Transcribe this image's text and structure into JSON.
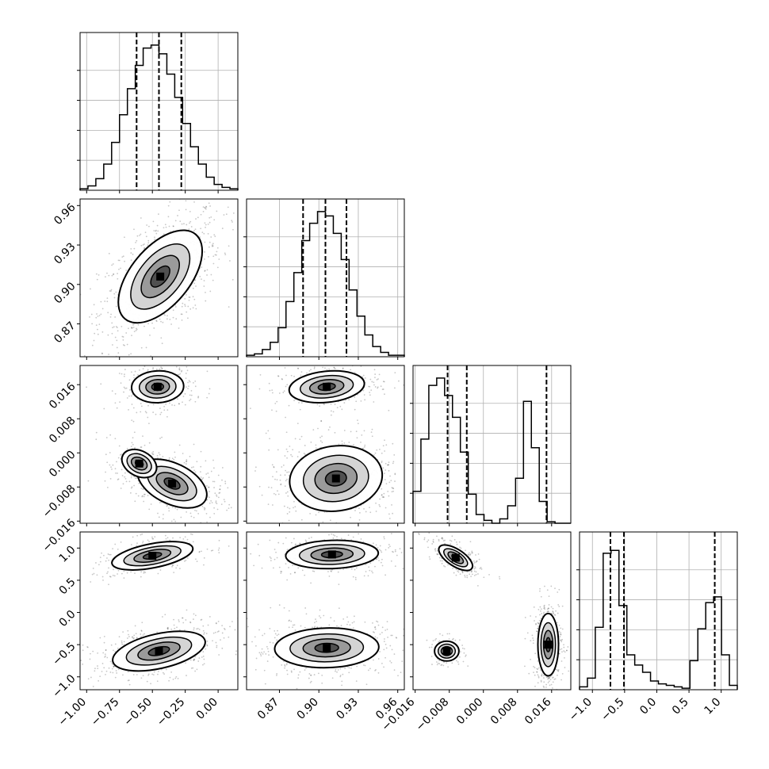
{
  "chart_data": {
    "type": "corner",
    "parameters": [
      {
        "range": [
          -1.05,
          0.15
        ],
        "ticks": [
          -1.0,
          -0.75,
          -0.5,
          -0.25,
          0.0
        ],
        "tick_labels": [
          "−1.00",
          "−0.75",
          "−0.50",
          "−0.25",
          "0.00"
        ]
      },
      {
        "range": [
          0.845,
          0.965
        ],
        "ticks": [
          0.87,
          0.9,
          0.93,
          0.96
        ],
        "tick_labels": [
          "0.87",
          "0.90",
          "0.93",
          "0.96"
        ]
      },
      {
        "range": [
          -0.0165,
          0.0205
        ],
        "ticks": [
          -0.016,
          -0.008,
          0.0,
          0.008,
          0.016
        ],
        "tick_labels": [
          "−0.016",
          "−0.008",
          "0.000",
          "0.008",
          "0.016"
        ]
      },
      {
        "range": [
          -1.2,
          1.25
        ],
        "ticks": [
          -1.0,
          -0.5,
          0.0,
          0.5,
          1.0
        ],
        "tick_labels": [
          "−1.0",
          "−0.5",
          "0.0",
          "0.5",
          "1.0"
        ]
      }
    ],
    "histograms": [
      {
        "bin_start": -1.05,
        "bin_width": 0.06,
        "values": [
          1,
          3,
          8,
          18,
          33,
          52,
          70,
          86,
          98,
          100,
          94,
          80,
          64,
          46,
          30,
          18,
          9,
          4,
          2,
          1
        ],
        "quantiles": [
          -0.62,
          -0.45,
          -0.28
        ]
      },
      {
        "bin_start": 0.845,
        "bin_width": 0.006,
        "values": [
          1,
          2,
          5,
          10,
          20,
          38,
          58,
          80,
          92,
          100,
          97,
          85,
          67,
          46,
          28,
          15,
          7,
          3,
          1,
          1
        ],
        "quantiles": [
          0.888,
          0.905,
          0.921
        ]
      },
      {
        "bin_start": -0.0165,
        "bin_width": 0.00185,
        "values": [
          22,
          58,
          95,
          100,
          88,
          73,
          49,
          20,
          6,
          2,
          0,
          3,
          12,
          31,
          84,
          52,
          15,
          1,
          0,
          0
        ],
        "quantiles": [
          -0.0084,
          -0.0039,
          0.0148
        ]
      },
      {
        "bin_start": -1.2,
        "bin_width": 0.1225,
        "values": [
          2,
          8,
          43,
          94,
          96,
          58,
          24,
          17,
          12,
          6,
          4,
          3,
          2,
          1,
          20,
          42,
          60,
          64,
          24,
          3
        ],
        "quantiles": [
          -0.72,
          -0.51,
          0.9
        ]
      }
    ],
    "density_2d": [
      {
        "x_param": 0,
        "y_param": 1,
        "modes": [
          {
            "mx": -0.44,
            "my": 0.906,
            "sx": 0.145,
            "sy": 0.016,
            "rho": 0.55,
            "w": 1.0
          }
        ]
      },
      {
        "x_param": 0,
        "y_param": 2,
        "modes": [
          {
            "mx": -0.46,
            "my": 0.0155,
            "sx": 0.09,
            "sy": 0.0017,
            "rho": 0.05,
            "w": 0.35
          },
          {
            "mx": -0.35,
            "my": -0.0072,
            "sx": 0.12,
            "sy": 0.0026,
            "rho": -0.45,
            "w": 0.6
          },
          {
            "mx": -0.6,
            "my": -0.0025,
            "sx": 0.06,
            "sy": 0.0015,
            "rho": -0.3,
            "w": 0.15
          }
        ]
      },
      {
        "x_param": 1,
        "y_param": 2,
        "modes": [
          {
            "mx": 0.906,
            "my": 0.0155,
            "sx": 0.013,
            "sy": 0.0017,
            "rho": 0.2,
            "w": 0.35
          },
          {
            "mx": 0.913,
            "my": -0.006,
            "sx": 0.016,
            "sy": 0.0035,
            "rho": 0.1,
            "w": 0.65
          }
        ]
      },
      {
        "x_param": 0,
        "y_param": 3,
        "modes": [
          {
            "mx": -0.5,
            "my": 0.88,
            "sx": 0.14,
            "sy": 0.1,
            "rho": 0.5,
            "w": 0.35
          },
          {
            "mx": -0.45,
            "my": -0.6,
            "sx": 0.16,
            "sy": 0.14,
            "rho": 0.45,
            "w": 0.65
          }
        ]
      },
      {
        "x_param": 1,
        "y_param": 3,
        "modes": [
          {
            "mx": 0.91,
            "my": 0.9,
            "sx": 0.016,
            "sy": 0.1,
            "rho": 0.1,
            "w": 0.35
          },
          {
            "mx": 0.906,
            "my": -0.55,
            "sx": 0.018,
            "sy": 0.14,
            "rho": 0.05,
            "w": 0.65
          }
        ]
      },
      {
        "x_param": 2,
        "y_param": 3,
        "modes": [
          {
            "mx": -0.0065,
            "my": 0.85,
            "sx": 0.0018,
            "sy": 0.09,
            "rho": -0.65,
            "w": 0.35
          },
          {
            "mx": -0.0086,
            "my": -0.6,
            "sx": 0.0013,
            "sy": 0.07,
            "rho": 0.0,
            "w": 0.15
          },
          {
            "mx": 0.0152,
            "my": -0.5,
            "sx": 0.0011,
            "sy": 0.22,
            "rho": 0.0,
            "w": 0.5
          }
        ]
      }
    ]
  }
}
